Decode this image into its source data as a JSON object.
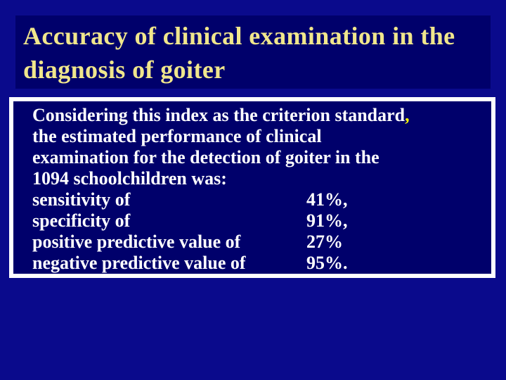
{
  "title": {
    "line1": "Accuracy of clinical examination in the",
    "line2": "diagnosis of goiter"
  },
  "body": {
    "intro_line1_text": "Considering this index as the criterion standard",
    "intro_line1_comma": ",",
    "intro_line2": "the estimated performance of clinical",
    "intro_line3": "examination for the detection of goiter in the",
    "intro_line4": "1094 schoolchildren was:",
    "metrics": [
      {
        "label": "sensitivity of",
        "value": "41%,"
      },
      {
        "label": "specificity of",
        "value": "91%,"
      },
      {
        "label": "positive predictive value of",
        "value": "27%"
      },
      {
        "label": "negative predictive value of",
        "value": "95%."
      }
    ]
  },
  "colors": {
    "background": "#0a0a8c",
    "panel": "#00006b",
    "title_text": "#f0e68c",
    "body_text": "#ffffff",
    "panel_border": "#ffffff"
  }
}
